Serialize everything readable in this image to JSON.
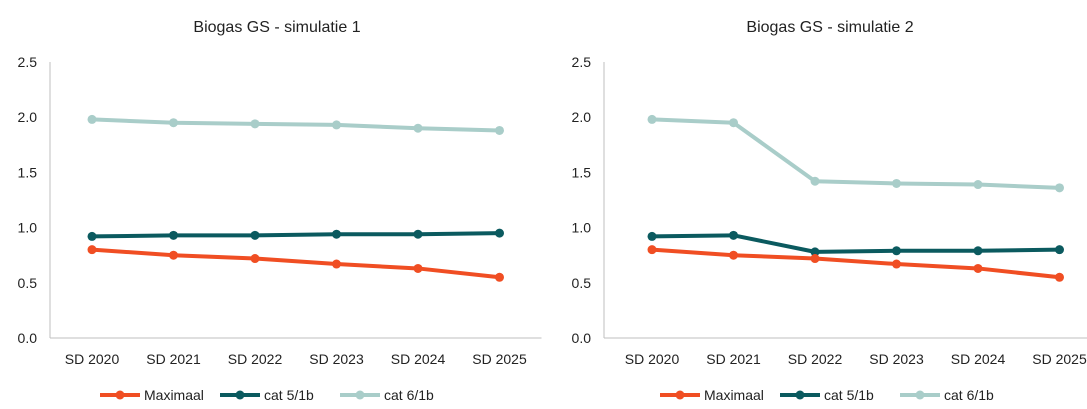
{
  "chart_data": [
    {
      "type": "line",
      "title": "Biogas GS - simulatie 1",
      "categories": [
        "SD 2020",
        "SD 2021",
        "SD 2022",
        "SD 2023",
        "SD 2024",
        "SD 2025"
      ],
      "ylim": [
        0,
        2.5
      ],
      "yticks": [
        "0.0",
        "0.5",
        "1.0",
        "1.5",
        "2.0",
        "2.5"
      ],
      "grid": false,
      "legend": "bottom",
      "series": [
        {
          "name": "Maximaal",
          "color": "#f04e23",
          "values": [
            0.8,
            0.75,
            0.72,
            0.67,
            0.63,
            0.55
          ]
        },
        {
          "name": "cat 5/1b",
          "color": "#0b5a5f",
          "values": [
            0.92,
            0.93,
            0.93,
            0.94,
            0.94,
            0.95
          ]
        },
        {
          "name": "cat 6/1b",
          "color": "#a9cdc9",
          "values": [
            1.98,
            1.95,
            1.94,
            1.93,
            1.9,
            1.88
          ]
        }
      ]
    },
    {
      "type": "line",
      "title": "Biogas GS - simulatie 2",
      "categories": [
        "SD 2020",
        "SD 2021",
        "SD 2022",
        "SD 2023",
        "SD 2024",
        "SD 2025"
      ],
      "ylim": [
        0,
        2.5
      ],
      "yticks": [
        "0.0",
        "0.5",
        "1.0",
        "1.5",
        "2.0",
        "2.5"
      ],
      "grid": false,
      "legend": "bottom",
      "series": [
        {
          "name": "Maximaal",
          "color": "#f04e23",
          "values": [
            0.8,
            0.75,
            0.72,
            0.67,
            0.63,
            0.55
          ]
        },
        {
          "name": "cat 5/1b",
          "color": "#0b5a5f",
          "values": [
            0.92,
            0.93,
            0.78,
            0.79,
            0.79,
            0.8
          ]
        },
        {
          "name": "cat 6/1b",
          "color": "#a9cdc9",
          "values": [
            1.98,
            1.95,
            1.42,
            1.4,
            1.39,
            1.36
          ]
        }
      ]
    }
  ]
}
